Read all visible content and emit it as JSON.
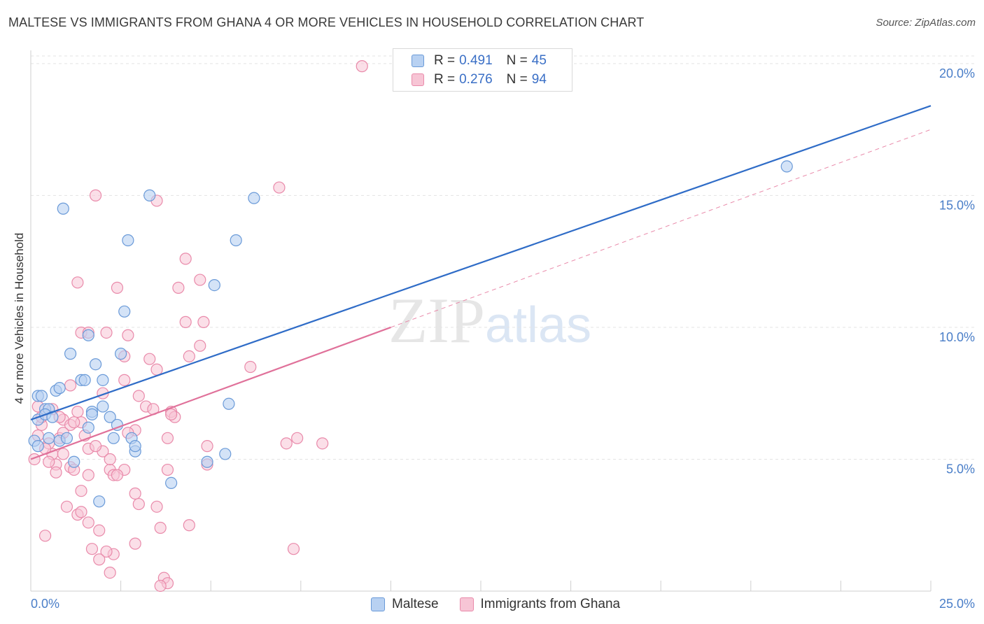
{
  "title": "MALTESE VS IMMIGRANTS FROM GHANA 4 OR MORE VEHICLES IN HOUSEHOLD CORRELATION CHART",
  "source": "Source: ZipAtlas.com",
  "watermark": {
    "zip": "ZIP",
    "atlas": "atlas"
  },
  "legend": {
    "rows": [
      {
        "r_label": "R = ",
        "r_value": "0.491",
        "n_label": "N = ",
        "n_value": "45"
      },
      {
        "r_label": "R = ",
        "r_value": "0.276",
        "n_label": "N = ",
        "n_value": "94"
      }
    ]
  },
  "bottom_legend": [
    "Maltese",
    "Immigrants from Ghana"
  ],
  "colors": {
    "maltese_fill": "#b8d1f2",
    "maltese_stroke": "#6a9ad8",
    "maltese_line": "#2f6cc7",
    "ghana_fill": "#f7c5d5",
    "ghana_stroke": "#e98aaa",
    "ghana_line": "#e0719a",
    "tick": "#4a7ec8",
    "grid": "#e3e3e3"
  },
  "chart_data": {
    "type": "scatter",
    "title": "MALTESE VS IMMIGRANTS FROM GHANA 4 OR MORE VEHICLES IN HOUSEHOLD CORRELATION CHART",
    "xlabel": "",
    "ylabel": "4 or more Vehicles in Household",
    "xlim": [
      0,
      25
    ],
    "ylim": [
      0,
      20.5
    ],
    "x_tick_labels": [
      "0.0%",
      "25.0%"
    ],
    "y_ticks": [
      5,
      10,
      15,
      20
    ],
    "y_tick_labels": [
      "5.0%",
      "10.0%",
      "15.0%",
      "20.0%"
    ],
    "legend_position": "top-center",
    "series": [
      {
        "name": "Maltese",
        "r": 0.491,
        "n": 45,
        "trend": {
          "x": [
            0,
            25
          ],
          "y": [
            6.5,
            18.4
          ]
        },
        "points": [
          [
            0.2,
            7.4
          ],
          [
            0.3,
            7.4
          ],
          [
            0.4,
            6.9
          ],
          [
            0.5,
            6.9
          ],
          [
            0.2,
            6.5
          ],
          [
            0.4,
            6.7
          ],
          [
            0.1,
            5.7
          ],
          [
            0.2,
            5.5
          ],
          [
            0.5,
            5.8
          ],
          [
            0.8,
            5.7
          ],
          [
            1.0,
            5.8
          ],
          [
            1.2,
            4.9
          ],
          [
            0.7,
            7.6
          ],
          [
            0.8,
            7.7
          ],
          [
            1.1,
            9.0
          ],
          [
            1.4,
            8.0
          ],
          [
            1.5,
            8.0
          ],
          [
            1.6,
            9.7
          ],
          [
            1.7,
            6.8
          ],
          [
            1.6,
            6.2
          ],
          [
            1.7,
            6.7
          ],
          [
            1.8,
            8.6
          ],
          [
            2.0,
            8.0
          ],
          [
            2.0,
            7.0
          ],
          [
            2.2,
            6.6
          ],
          [
            2.3,
            5.8
          ],
          [
            2.4,
            6.3
          ],
          [
            2.5,
            9.0
          ],
          [
            2.6,
            10.6
          ],
          [
            2.7,
            13.3
          ],
          [
            2.8,
            5.8
          ],
          [
            2.9,
            5.3
          ],
          [
            2.9,
            5.5
          ],
          [
            3.3,
            15.0
          ],
          [
            3.9,
            4.1
          ],
          [
            4.9,
            4.9
          ],
          [
            5.1,
            11.6
          ],
          [
            5.4,
            5.2
          ],
          [
            5.5,
            7.1
          ],
          [
            5.7,
            13.3
          ],
          [
            6.2,
            14.9
          ],
          [
            0.9,
            14.5
          ],
          [
            21.0,
            16.1
          ],
          [
            1.9,
            3.4
          ],
          [
            0.6,
            6.6
          ]
        ]
      },
      {
        "name": "Immigrants from Ghana",
        "r": 0.276,
        "n": 94,
        "trend": {
          "x": [
            0,
            10
          ],
          "y": [
            5.0,
            10.0
          ]
        },
        "trend_extension": {
          "x": [
            10,
            25
          ],
          "y": [
            10.0,
            17.5
          ]
        },
        "points": [
          [
            9.2,
            19.9
          ],
          [
            1.8,
            15.0
          ],
          [
            3.5,
            14.8
          ],
          [
            6.9,
            15.3
          ],
          [
            4.3,
            12.6
          ],
          [
            4.7,
            11.8
          ],
          [
            1.3,
            11.7
          ],
          [
            2.4,
            11.5
          ],
          [
            4.1,
            11.5
          ],
          [
            1.4,
            9.8
          ],
          [
            2.1,
            9.8
          ],
          [
            1.6,
            9.8
          ],
          [
            2.7,
            9.7
          ],
          [
            4.3,
            10.2
          ],
          [
            4.8,
            10.2
          ],
          [
            2.6,
            8.9
          ],
          [
            3.3,
            8.8
          ],
          [
            4.4,
            8.9
          ],
          [
            4.7,
            9.3
          ],
          [
            6.1,
            8.5
          ],
          [
            3.5,
            8.4
          ],
          [
            2.6,
            8.0
          ],
          [
            1.1,
            7.8
          ],
          [
            2.0,
            7.5
          ],
          [
            3.0,
            7.4
          ],
          [
            3.2,
            7.0
          ],
          [
            3.4,
            6.9
          ],
          [
            3.9,
            6.8
          ],
          [
            4.0,
            6.6
          ],
          [
            2.9,
            6.1
          ],
          [
            1.4,
            6.4
          ],
          [
            1.5,
            5.9
          ],
          [
            0.9,
            6.5
          ],
          [
            0.8,
            6.6
          ],
          [
            0.3,
            6.3
          ],
          [
            0.2,
            5.9
          ],
          [
            0.5,
            5.6
          ],
          [
            0.6,
            5.2
          ],
          [
            0.9,
            5.2
          ],
          [
            0.7,
            4.8
          ],
          [
            1.1,
            4.7
          ],
          [
            1.2,
            4.6
          ],
          [
            2.0,
            5.3
          ],
          [
            1.6,
            5.4
          ],
          [
            2.2,
            4.6
          ],
          [
            2.3,
            4.4
          ],
          [
            2.6,
            4.6
          ],
          [
            0.7,
            4.5
          ],
          [
            3.8,
            5.8
          ],
          [
            3.8,
            4.6
          ],
          [
            4.9,
            5.5
          ],
          [
            4.9,
            4.8
          ],
          [
            7.1,
            5.6
          ],
          [
            7.4,
            5.8
          ],
          [
            8.1,
            5.6
          ],
          [
            1.4,
            3.8
          ],
          [
            2.9,
            3.7
          ],
          [
            3.0,
            3.3
          ],
          [
            3.5,
            3.2
          ],
          [
            1.0,
            3.2
          ],
          [
            1.3,
            2.9
          ],
          [
            1.4,
            3.0
          ],
          [
            1.6,
            2.6
          ],
          [
            1.9,
            2.3
          ],
          [
            0.4,
            2.1
          ],
          [
            3.6,
            2.4
          ],
          [
            4.4,
            2.5
          ],
          [
            1.7,
            1.6
          ],
          [
            2.3,
            1.4
          ],
          [
            2.9,
            1.8
          ],
          [
            2.1,
            1.5
          ],
          [
            1.9,
            1.2
          ],
          [
            7.3,
            1.6
          ],
          [
            2.2,
            0.7
          ],
          [
            3.7,
            0.5
          ],
          [
            3.8,
            0.3
          ],
          [
            3.6,
            0.2
          ],
          [
            0.1,
            5.0
          ],
          [
            0.3,
            6.6
          ],
          [
            0.2,
            7.0
          ],
          [
            0.6,
            6.9
          ],
          [
            1.1,
            6.3
          ],
          [
            1.3,
            6.8
          ],
          [
            1.2,
            6.4
          ],
          [
            2.4,
            4.4
          ],
          [
            2.7,
            6.0
          ],
          [
            0.5,
            4.9
          ],
          [
            0.4,
            5.4
          ],
          [
            0.8,
            5.8
          ],
          [
            1.8,
            5.5
          ],
          [
            2.2,
            5.0
          ],
          [
            3.9,
            6.7
          ],
          [
            0.9,
            6.0
          ],
          [
            1.6,
            4.4
          ]
        ]
      }
    ]
  }
}
